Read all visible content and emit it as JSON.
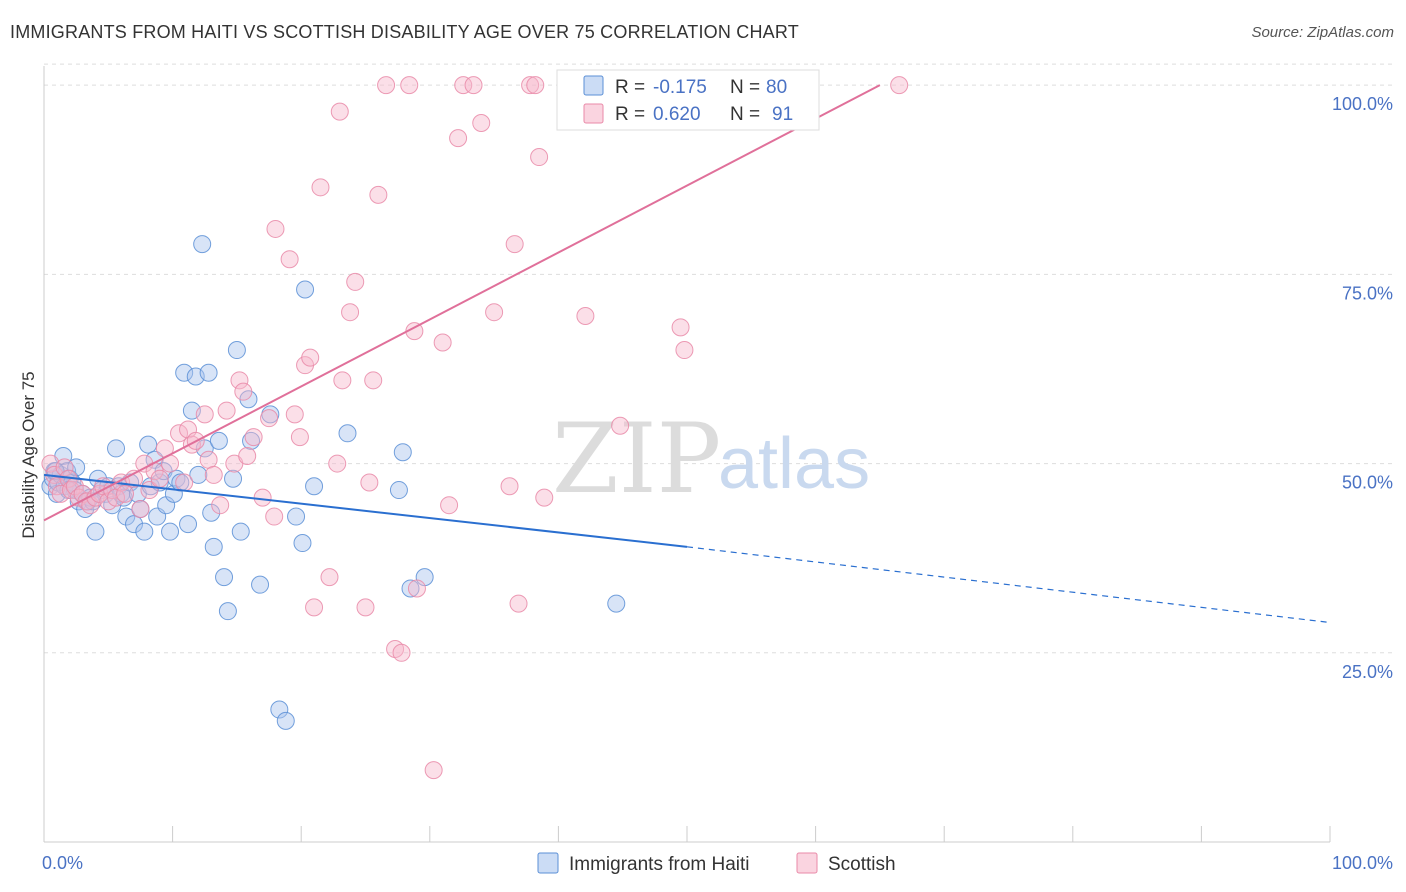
{
  "title": "IMMIGRANTS FROM HAITI VS SCOTTISH DISABILITY AGE OVER 75 CORRELATION CHART",
  "source": "Source: ZipAtlas.com",
  "colors": {
    "haiti_fill": "#a9c4ee",
    "haiti_stroke": "#5b8fd6",
    "haiti_line": "#2a6fd0",
    "scottish_fill": "#f6b7cb",
    "scottish_stroke": "#e98aa8",
    "scottish_line": "#e0709a",
    "tick_text": "#4a72c4",
    "grid": "#dddddd"
  },
  "watermark": {
    "zip": "ZIP",
    "atlas": "atlas"
  },
  "legend": {
    "r_label": "R =",
    "n_label": "N =",
    "items": [
      {
        "r": "-0.175",
        "n": "80"
      },
      {
        "r": "0.620",
        "n": "91"
      }
    ]
  },
  "bottom_legend": [
    "Immigrants from Haiti",
    "Scottish"
  ],
  "chart_data": {
    "type": "scatter",
    "title": "IMMIGRANTS FROM HAITI VS SCOTTISH DISABILITY AGE OVER 75 CORRELATION CHART",
    "xlabel": "",
    "ylabel": "Disability Age Over 75",
    "xlim": [
      0,
      100
    ],
    "ylim": [
      0,
      102
    ],
    "x_tick_labels": [
      "0.0%",
      "100.0%"
    ],
    "y_ticks": [
      25,
      50,
      75,
      100
    ],
    "y_tick_labels": [
      "25.0%",
      "50.0%",
      "75.0%",
      "100.0%"
    ],
    "grid": true,
    "legend_position": "top-center",
    "series": [
      {
        "name": "Immigrants from Haiti",
        "points": [
          [
            0.5,
            47
          ],
          [
            0.7,
            48
          ],
          [
            0.8,
            49
          ],
          [
            1,
            46
          ],
          [
            1.1,
            47.5
          ],
          [
            1.3,
            48.5
          ],
          [
            1.5,
            51
          ],
          [
            1.6,
            47
          ],
          [
            1.8,
            49
          ],
          [
            2,
            48
          ],
          [
            2.2,
            47.5
          ],
          [
            2.4,
            46.5
          ],
          [
            2.5,
            49.5
          ],
          [
            2.7,
            45
          ],
          [
            3,
            46
          ],
          [
            3.2,
            44
          ],
          [
            3.4,
            45
          ],
          [
            3.6,
            45.5
          ],
          [
            4,
            41
          ],
          [
            4.2,
            48
          ],
          [
            4.5,
            46.5
          ],
          [
            4.8,
            46
          ],
          [
            5,
            47
          ],
          [
            5.3,
            44.5
          ],
          [
            5.6,
            52
          ],
          [
            5.8,
            47
          ],
          [
            6,
            46
          ],
          [
            6.2,
            45.5
          ],
          [
            6.4,
            43
          ],
          [
            6.7,
            47.5
          ],
          [
            7,
            42
          ],
          [
            7.3,
            46
          ],
          [
            7.5,
            44
          ],
          [
            7.8,
            41
          ],
          [
            8.1,
            52.5
          ],
          [
            8.3,
            47
          ],
          [
            8.6,
            50.5
          ],
          [
            8.8,
            43
          ],
          [
            9,
            47.5
          ],
          [
            9.3,
            49
          ],
          [
            9.5,
            44.5
          ],
          [
            9.8,
            41
          ],
          [
            10.1,
            46
          ],
          [
            10.3,
            48
          ],
          [
            10.6,
            47.5
          ],
          [
            10.9,
            62
          ],
          [
            11.2,
            42
          ],
          [
            11.5,
            57
          ],
          [
            11.8,
            61.5
          ],
          [
            12,
            48.5
          ],
          [
            12.3,
            79
          ],
          [
            12.5,
            52
          ],
          [
            12.8,
            62
          ],
          [
            13,
            43.5
          ],
          [
            13.2,
            39
          ],
          [
            13.6,
            53
          ],
          [
            14,
            35
          ],
          [
            14.3,
            30.5
          ],
          [
            14.7,
            48
          ],
          [
            15,
            65
          ],
          [
            15.3,
            41
          ],
          [
            15.9,
            58.5
          ],
          [
            16.1,
            53
          ],
          [
            16.8,
            34
          ],
          [
            17.6,
            56.5
          ],
          [
            18.3,
            17.5
          ],
          [
            18.8,
            16
          ],
          [
            19.6,
            43
          ],
          [
            20.1,
            39.5
          ],
          [
            20.3,
            73
          ],
          [
            21,
            47
          ],
          [
            23.6,
            54
          ],
          [
            27.6,
            46.5
          ],
          [
            27.9,
            51.5
          ],
          [
            28.5,
            33.5
          ],
          [
            29.6,
            35
          ],
          [
            44.5,
            31.5
          ],
          [
            0.9,
            49
          ],
          [
            1.9,
            46.5
          ],
          [
            3.8,
            45
          ]
        ]
      },
      {
        "name": "Scottish",
        "points": [
          [
            0.5,
            50
          ],
          [
            0.8,
            48.5
          ],
          [
            1,
            47
          ],
          [
            1.3,
            46
          ],
          [
            1.6,
            49.5
          ],
          [
            1.9,
            48
          ],
          [
            2.1,
            46.5
          ],
          [
            2.4,
            47
          ],
          [
            2.7,
            45.5
          ],
          [
            3,
            46
          ],
          [
            3.3,
            45
          ],
          [
            3.6,
            44.5
          ],
          [
            4,
            45.5
          ],
          [
            4.3,
            46
          ],
          [
            4.6,
            47
          ],
          [
            5,
            45
          ],
          [
            5.3,
            46.5
          ],
          [
            5.6,
            45.5
          ],
          [
            6,
            47.5
          ],
          [
            6.3,
            46
          ],
          [
            7,
            48
          ],
          [
            7.5,
            44
          ],
          [
            7.8,
            50
          ],
          [
            8.2,
            46.5
          ],
          [
            8.6,
            49
          ],
          [
            9,
            48
          ],
          [
            9.4,
            52
          ],
          [
            9.8,
            50
          ],
          [
            10.5,
            54
          ],
          [
            10.9,
            47.5
          ],
          [
            11.2,
            54.5
          ],
          [
            11.5,
            52.5
          ],
          [
            11.8,
            53
          ],
          [
            12.5,
            56.5
          ],
          [
            12.8,
            50.5
          ],
          [
            13.2,
            48.5
          ],
          [
            13.7,
            44.5
          ],
          [
            14.2,
            57
          ],
          [
            14.8,
            50
          ],
          [
            15.2,
            61
          ],
          [
            15.5,
            59.5
          ],
          [
            15.8,
            51
          ],
          [
            16.3,
            53.5
          ],
          [
            17,
            45.5
          ],
          [
            17.5,
            56
          ],
          [
            17.9,
            43
          ],
          [
            18,
            81
          ],
          [
            19.1,
            77
          ],
          [
            19.5,
            56.5
          ],
          [
            19.9,
            53.5
          ],
          [
            20.3,
            63
          ],
          [
            20.7,
            64
          ],
          [
            21,
            31
          ],
          [
            21.5,
            86.5
          ],
          [
            22.2,
            35
          ],
          [
            22.8,
            50
          ],
          [
            23,
            96.5
          ],
          [
            23.2,
            61
          ],
          [
            23.8,
            70
          ],
          [
            24.2,
            74
          ],
          [
            25,
            31
          ],
          [
            25.3,
            47.5
          ],
          [
            25.6,
            61
          ],
          [
            26,
            85.5
          ],
          [
            26.6,
            100
          ],
          [
            27.3,
            25.5
          ],
          [
            27.8,
            25
          ],
          [
            28.4,
            100
          ],
          [
            28.8,
            67.5
          ],
          [
            29,
            33.5
          ],
          [
            30.3,
            9.5
          ],
          [
            31,
            66
          ],
          [
            31.5,
            44.5
          ],
          [
            32.2,
            93
          ],
          [
            32.6,
            100
          ],
          [
            33.4,
            100
          ],
          [
            34,
            95
          ],
          [
            35,
            70
          ],
          [
            36.2,
            47
          ],
          [
            36.6,
            79
          ],
          [
            36.9,
            31.5
          ],
          [
            37.8,
            100
          ],
          [
            38.2,
            100
          ],
          [
            38.5,
            90.5
          ],
          [
            38.9,
            45.5
          ],
          [
            41,
            100
          ],
          [
            42.1,
            69.5
          ],
          [
            44.8,
            55
          ],
          [
            49.5,
            68
          ],
          [
            49.8,
            65
          ],
          [
            66.5,
            100
          ]
        ]
      }
    ],
    "trend_lines": [
      {
        "series": "Immigrants from Haiti",
        "solid": [
          [
            0,
            48.5
          ],
          [
            50,
            39
          ]
        ],
        "dashed": [
          [
            50,
            39
          ],
          [
            100,
            29
          ]
        ]
      },
      {
        "series": "Scottish",
        "solid": [
          [
            0,
            42.5
          ],
          [
            65,
            100
          ]
        ]
      }
    ]
  }
}
